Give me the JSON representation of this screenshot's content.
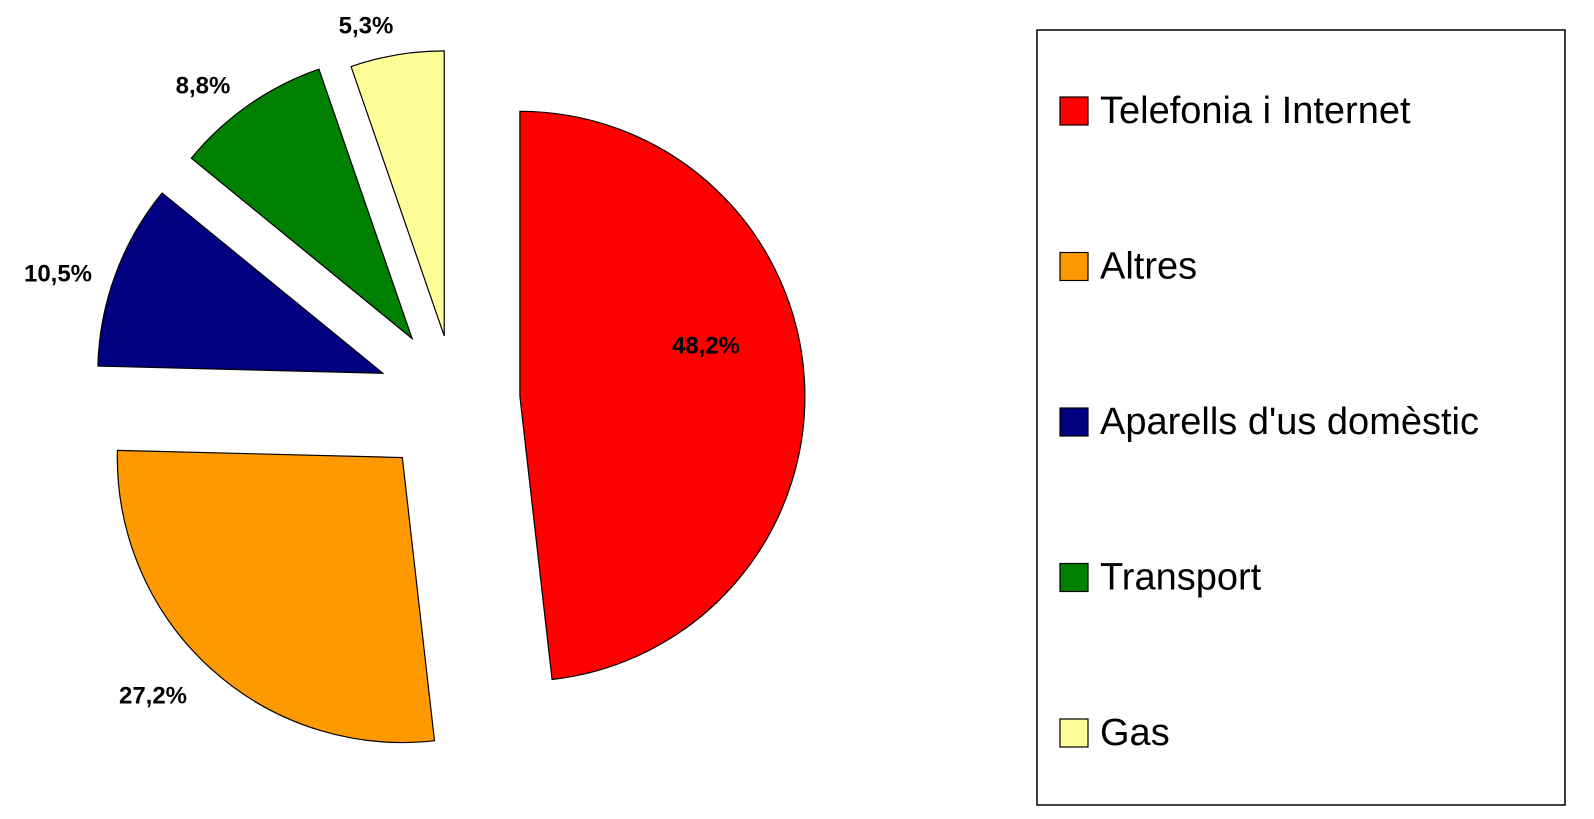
{
  "chart_data": {
    "type": "pie",
    "categories": [
      "Telefonia i Internet",
      "Altres",
      "Aparells d'us domèstic",
      "Transport",
      "Gas"
    ],
    "values": [
      48.2,
      27.2,
      10.5,
      8.8,
      5.3
    ],
    "value_labels": [
      "48,2%",
      "27,2%",
      "10,5%",
      "8,8%",
      "5,3%"
    ],
    "colors": [
      "#ff0000",
      "#ff9900",
      "#000080",
      "#008000",
      "#ffff99"
    ],
    "legend": "right"
  }
}
